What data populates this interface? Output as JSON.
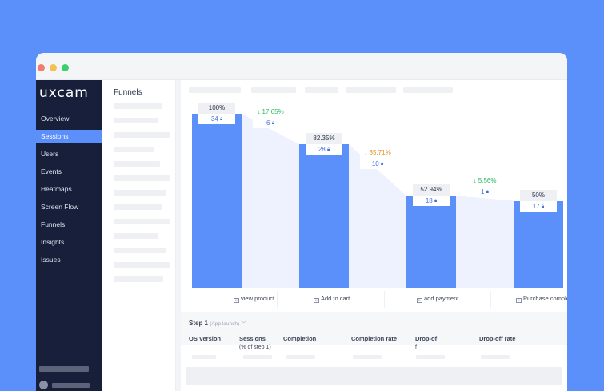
{
  "window": {
    "traffic_lights": [
      "#f27b72",
      "#f5c04d",
      "#3ccf6e"
    ]
  },
  "sidebar": {
    "logo": "uxcam",
    "items": [
      {
        "label": "Overview",
        "active": false
      },
      {
        "label": "Sessions",
        "active": true
      },
      {
        "label": "Users",
        "active": false
      },
      {
        "label": "Events",
        "active": false
      },
      {
        "label": "Heatmaps",
        "active": false
      },
      {
        "label": "Screen Flow",
        "active": false
      },
      {
        "label": "Funnels",
        "active": false
      },
      {
        "label": "Insights",
        "active": false
      },
      {
        "label": "Issues",
        "active": false
      }
    ]
  },
  "panel": {
    "title": "Funnels"
  },
  "funnel": {
    "steps": [
      {
        "label": "view product",
        "percent": "100%",
        "count": "34",
        "pct_value": 100
      },
      {
        "label": "Add to cart",
        "percent": "82.35%",
        "count": "28",
        "pct_value": 82.35
      },
      {
        "label": "add payment",
        "percent": "52.94%",
        "count": "18",
        "pct_value": 52.94
      },
      {
        "label": "Purchase complete",
        "percent": "50%",
        "count": "17",
        "pct_value": 50
      }
    ],
    "drops": [
      {
        "percent": "17.65%",
        "count": "6",
        "color": "#2fb866",
        "arrow": "↓"
      },
      {
        "percent": "35.71%",
        "count": "10",
        "color": "#e8912b",
        "arrow": "↓"
      },
      {
        "percent": "5.56%",
        "count": "1",
        "color": "#2fb866",
        "arrow": "↓"
      }
    ]
  },
  "table": {
    "step_title": "Step 1",
    "step_subtitle": "(App launch)",
    "columns": {
      "os_version": "OS Version",
      "sessions_1": "Sessions",
      "sessions_2": "(% of step 1)",
      "completion": "Completion",
      "completion_rate": "Completion rate",
      "dropoff_1": "Drop-of",
      "dropoff_2": "f",
      "dropoff_rate": "Drop-off rate"
    }
  },
  "colors": {
    "accent": "#5b8ff9",
    "sidebar_bg": "#171f3b"
  }
}
